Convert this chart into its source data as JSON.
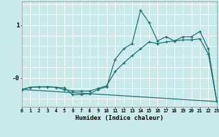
{
  "xlabel": "Humidex (Indice chaleur)",
  "bg_color": "#c8eaea",
  "line_color": "#1a7070",
  "grid_color": "#ffffff",
  "xlim": [
    0,
    23
  ],
  "ylim": [
    -0.55,
    1.45
  ],
  "series1_x": [
    0,
    1,
    2,
    3,
    4,
    5,
    6,
    7,
    8,
    9,
    10,
    11,
    12,
    13,
    14,
    15,
    16,
    17,
    18,
    19,
    20,
    21,
    22,
    23
  ],
  "series1_y": [
    -0.22,
    -0.18,
    -0.17,
    -0.17,
    -0.18,
    -0.19,
    -0.32,
    -0.31,
    -0.3,
    -0.22,
    -0.17,
    0.35,
    0.55,
    0.65,
    1.28,
    1.05,
    0.7,
    0.78,
    0.7,
    0.78,
    0.78,
    0.88,
    0.55,
    -0.45
  ],
  "series2_x": [
    0,
    1,
    2,
    3,
    4,
    5,
    6,
    7,
    8,
    9,
    10,
    11,
    12,
    13,
    14,
    15,
    16,
    17,
    18,
    19,
    20,
    21,
    22,
    23
  ],
  "series2_y": [
    -0.22,
    -0.18,
    -0.17,
    -0.17,
    -0.18,
    -0.22,
    -0.25,
    -0.25,
    -0.25,
    -0.2,
    -0.15,
    0.12,
    0.28,
    0.42,
    0.55,
    0.68,
    0.65,
    0.68,
    0.7,
    0.72,
    0.72,
    0.74,
    0.45,
    -0.45
  ],
  "series3_x": [
    0,
    23
  ],
  "series3_y": [
    -0.22,
    -0.45
  ],
  "xticks": [
    0,
    1,
    2,
    3,
    4,
    5,
    6,
    7,
    8,
    9,
    10,
    11,
    12,
    13,
    14,
    15,
    16,
    17,
    18,
    19,
    20,
    21,
    22,
    23
  ]
}
